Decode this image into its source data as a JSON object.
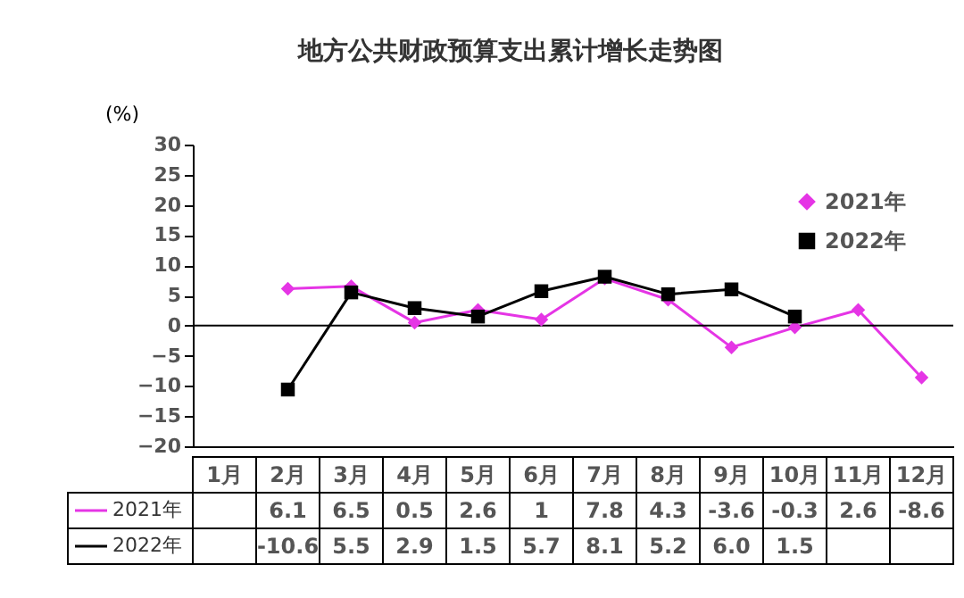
{
  "chart_data": {
    "type": "line",
    "title": "地方公共财政预算支出累计增长走势图",
    "ylabel": "(%)",
    "categories": [
      "1月",
      "2月",
      "3月",
      "4月",
      "5月",
      "6月",
      "7月",
      "8月",
      "9月",
      "10月",
      "11月",
      "12月"
    ],
    "series": [
      {
        "name": "2021年",
        "color": "#e535e5",
        "marker": "diamond",
        "values": [
          null,
          6.1,
          6.5,
          0.5,
          2.6,
          1,
          7.8,
          4.3,
          -3.6,
          -0.3,
          2.6,
          -8.6
        ],
        "value_labels": [
          null,
          "6.1",
          "6.5",
          "0.5",
          "2.6",
          "1",
          "7.8",
          "4.3",
          "-3.6",
          "-0.3",
          "2.6",
          "-8.6"
        ]
      },
      {
        "name": "2022年",
        "color": "#000000",
        "marker": "square",
        "values": [
          null,
          -10.6,
          5.5,
          2.9,
          1.5,
          5.7,
          8.1,
          5.2,
          6.0,
          1.5,
          null,
          null
        ],
        "value_labels": [
          null,
          "-10.6",
          "5.5",
          "2.9",
          "1.5",
          "5.7",
          "8.1",
          "5.2",
          "6.0",
          "1.5",
          null,
          null
        ]
      }
    ],
    "ylim": [
      -20,
      30
    ],
    "yticks": [
      -20,
      -15,
      -10,
      -5,
      0,
      5,
      10,
      15,
      20,
      25,
      30
    ],
    "ref_lines": [
      {
        "axis": "y",
        "value": 0,
        "color": "#000000"
      }
    ],
    "grid": false,
    "legend": "top right",
    "line_style": "solid"
  }
}
